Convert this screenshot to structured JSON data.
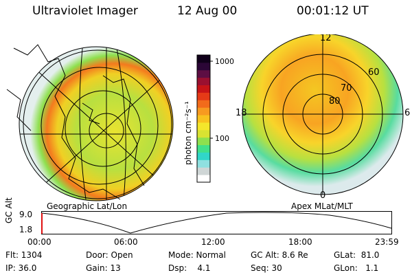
{
  "header": {
    "instrument": "Ultraviolet Imager",
    "date": "12 Aug 00",
    "time": "00:01:12 UT"
  },
  "panels": {
    "left_label": "Geographic Lat/Lon",
    "right_label": "Apex MLat/MLT",
    "right_ring_labels": [
      "80",
      "70",
      "60"
    ],
    "right_mlt_labels": [
      "12",
      "18",
      "6",
      "0"
    ]
  },
  "colorbar": {
    "unit_label": "photon cm⁻²s⁻¹",
    "tick_labels": [
      "1000",
      "100"
    ],
    "colors": [
      "#ffffff",
      "#cfd6d6",
      "#8fe0e0",
      "#31d6c9",
      "#41e08a",
      "#8ee04e",
      "#d9e232",
      "#f4e62b",
      "#f8c21f",
      "#f79a20",
      "#f26b1b",
      "#e53a17",
      "#c71417",
      "#9a1030",
      "#5d0e43",
      "#2b0636",
      "#10001a"
    ]
  },
  "timeline": {
    "ylabel": "GC Alt",
    "ytick_top": "9.0",
    "ytick_bottom": "1.8",
    "xticks": [
      "00:00",
      "06:00",
      "12:00",
      "18:00",
      "23:59"
    ]
  },
  "footer": {
    "flt": "Flt: 1304",
    "door": "Door: Open",
    "mode": "Mode: Normal",
    "gcalt": "GC Alt: 8.6 Re",
    "glat": "GLat:  81.0",
    "ip": "IP: 36.0",
    "gain": "Gain: 13",
    "dsp": "Dsp:    4.1",
    "seq": "Seq: 30",
    "glon": "GLon:   1.1"
  }
}
